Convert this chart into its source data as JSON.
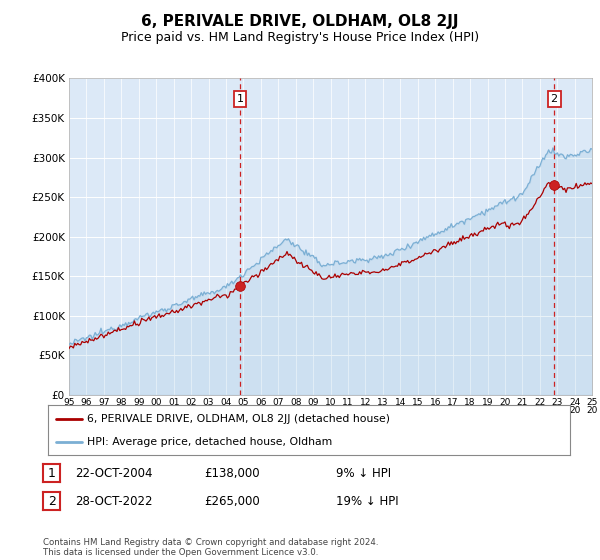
{
  "title": "6, PERIVALE DRIVE, OLDHAM, OL8 2JJ",
  "subtitle": "Price paid vs. HM Land Registry's House Price Index (HPI)",
  "title_fontsize": 11,
  "subtitle_fontsize": 9,
  "plot_bg_color": "#dce9f7",
  "line_color_hpi": "#7bafd4",
  "line_color_property": "#aa0000",
  "ylim": [
    0,
    400000
  ],
  "yticks": [
    0,
    50000,
    100000,
    150000,
    200000,
    250000,
    300000,
    350000,
    400000
  ],
  "sale1_date_x": 2004.81,
  "sale1_value": 138000,
  "sale2_date_x": 2022.82,
  "sale2_value": 265000,
  "legend_property": "6, PERIVALE DRIVE, OLDHAM, OL8 2JJ (detached house)",
  "legend_hpi": "HPI: Average price, detached house, Oldham",
  "footnote": "Contains HM Land Registry data © Crown copyright and database right 2024.\nThis data is licensed under the Open Government Licence v3.0.",
  "xmin": 1995,
  "xmax": 2025
}
